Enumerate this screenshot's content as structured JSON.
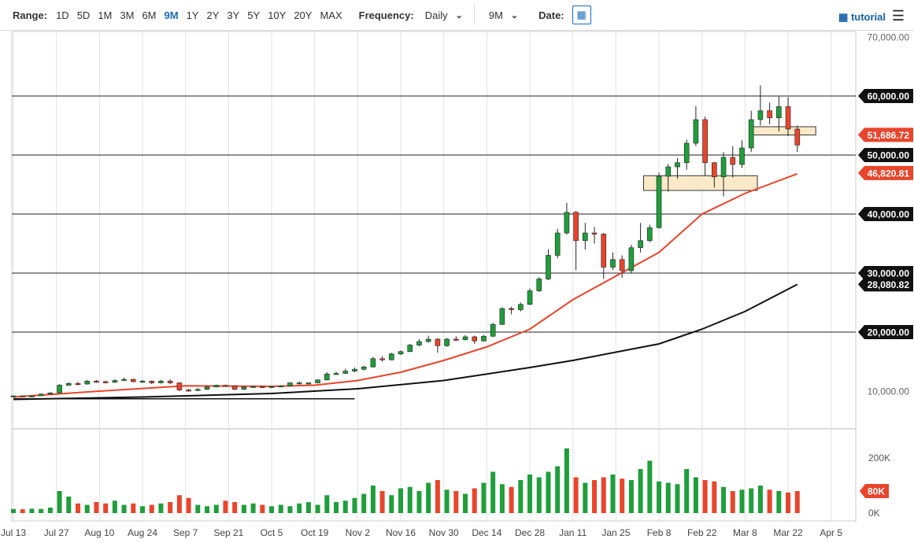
{
  "toolbar": {
    "range_label": "Range:",
    "ranges": [
      "1D",
      "5D",
      "1M",
      "3M",
      "6M",
      "9M",
      "1Y",
      "2Y",
      "3Y",
      "5Y",
      "10Y",
      "20Y",
      "MAX"
    ],
    "active_range": "9M",
    "frequency_label": "Frequency:",
    "frequency": "Daily",
    "period": "9M",
    "date_label": "Date:",
    "tutorial": "tutorial"
  },
  "chart_data": {
    "type": "candlestick",
    "colors": {
      "up": "#1f9e3c",
      "down": "#e8452c",
      "ma_fast": "#e8452c",
      "ma_slow": "#111111",
      "zone": "#fbe9c8"
    },
    "y_ticks": [
      10000,
      20000,
      30000,
      40000,
      50000,
      60000,
      70000
    ],
    "y_tick_labels": [
      "10,000.00",
      "20,000.00",
      "30,000.00",
      "40,000.00",
      "50,000.00",
      "60,000.00",
      "70,000.00"
    ],
    "ylim": [
      10000,
      70000
    ],
    "x_tick_labels": [
      "Jul 13",
      "Jul 27",
      "Aug 10",
      "Aug 24",
      "Sep 7",
      "Sep 21",
      "Oct 5",
      "Oct 19",
      "Nov 2",
      "Nov 16",
      "Nov 30",
      "Dec 14",
      "Dec 28",
      "Jan 11",
      "Jan 25",
      "Feb 8",
      "Feb 22",
      "Mar 8",
      "Mar 22",
      "Apr 5"
    ],
    "dates": [
      "Jul 13",
      "Jul 16",
      "Jul 19",
      "Jul 22",
      "Jul 25",
      "Jul 28",
      "Jul 31",
      "Aug 3",
      "Aug 6",
      "Aug 9",
      "Aug 12",
      "Aug 15",
      "Aug 18",
      "Aug 21",
      "Aug 24",
      "Aug 27",
      "Aug 30",
      "Sep 2",
      "Sep 5",
      "Sep 8",
      "Sep 11",
      "Sep 14",
      "Sep 17",
      "Sep 20",
      "Sep 23",
      "Sep 26",
      "Sep 29",
      "Oct 2",
      "Oct 5",
      "Oct 8",
      "Oct 11",
      "Oct 14",
      "Oct 17",
      "Oct 20",
      "Oct 23",
      "Oct 26",
      "Oct 29",
      "Nov 1",
      "Nov 4",
      "Nov 7",
      "Nov 10",
      "Nov 13",
      "Nov 16",
      "Nov 19",
      "Nov 22",
      "Nov 25",
      "Nov 28",
      "Dec 1",
      "Dec 4",
      "Dec 7",
      "Dec 10",
      "Dec 13",
      "Dec 16",
      "Dec 19",
      "Dec 22",
      "Dec 25",
      "Dec 28",
      "Dec 31",
      "Jan 3",
      "Jan 6",
      "Jan 9",
      "Jan 12",
      "Jan 15",
      "Jan 18",
      "Jan 21",
      "Jan 24",
      "Jan 27",
      "Jan 30",
      "Feb 2",
      "Feb 5",
      "Feb 8",
      "Feb 11",
      "Feb 14",
      "Feb 17",
      "Feb 20",
      "Feb 23",
      "Feb 26",
      "Mar 1",
      "Mar 4",
      "Mar 7",
      "Mar 10",
      "Mar 13",
      "Mar 16",
      "Mar 19",
      "Mar 22",
      "Mar 25"
    ],
    "open": [
      9100,
      9200,
      9100,
      9200,
      9500,
      9700,
      11000,
      11300,
      11200,
      11700,
      11600,
      11500,
      11800,
      12000,
      11600,
      11700,
      11400,
      11700,
      11400,
      10200,
      10100,
      10300,
      10700,
      11000,
      10900,
      10300,
      10700,
      10800,
      10600,
      10800,
      10900,
      11400,
      11400,
      11400,
      11900,
      12900,
      13000,
      13400,
      13700,
      14100,
      15500,
      15300,
      16300,
      16700,
      17800,
      18400,
      18800,
      17700,
      18800,
      18700,
      19200,
      18500,
      19300,
      21300,
      24000,
      23800,
      24700,
      27000,
      29000,
      33000,
      36800,
      40300,
      35500,
      36800,
      36600,
      31000,
      32300,
      30400,
      34300,
      35500,
      37700,
      46400,
      48000,
      48700,
      52000,
      56000,
      48700,
      46300,
      49600,
      48400,
      51200,
      56000,
      57500,
      56300,
      58200,
      54400
    ],
    "high": [
      9300,
      9250,
      9300,
      9600,
      9800,
      11200,
      11500,
      11600,
      11900,
      11900,
      11800,
      12000,
      12300,
      12100,
      11900,
      11800,
      11900,
      12000,
      11500,
      10400,
      10500,
      10800,
      11100,
      11100,
      11000,
      10800,
      10900,
      10900,
      10900,
      11000,
      11500,
      11600,
      11500,
      12000,
      13200,
      13300,
      13800,
      14000,
      14300,
      15800,
      15900,
      16500,
      16900,
      18000,
      18800,
      19400,
      19000,
      19000,
      19300,
      19500,
      19400,
      19500,
      21600,
      24200,
      24300,
      25000,
      27400,
      29300,
      34000,
      37500,
      41900,
      40500,
      38500,
      37800,
      36800,
      33500,
      33000,
      34800,
      38500,
      38200,
      47000,
      48500,
      49500,
      52600,
      58300,
      56500,
      48800,
      50500,
      51500,
      52500,
      57500,
      61800,
      58900,
      59900,
      59800,
      55000
    ],
    "low": [
      9000,
      9000,
      9050,
      9150,
      9400,
      9650,
      10900,
      11000,
      11100,
      11400,
      11300,
      11400,
      11700,
      11500,
      11400,
      11200,
      11300,
      11200,
      10000,
      9900,
      10000,
      10200,
      10600,
      10700,
      10200,
      10200,
      10600,
      10500,
      10500,
      10700,
      10800,
      11200,
      11300,
      11300,
      11800,
      12800,
      12900,
      13200,
      13500,
      14000,
      15000,
      15200,
      16100,
      16600,
      17600,
      18200,
      16500,
      17500,
      18500,
      18600,
      18000,
      18400,
      19200,
      21200,
      23000,
      23500,
      24600,
      26800,
      28800,
      32500,
      36500,
      30500,
      34000,
      35000,
      29000,
      30500,
      29200,
      30000,
      33500,
      35200,
      37500,
      43800,
      46000,
      47500,
      51500,
      46500,
      44500,
      43000,
      46200,
      47800,
      50500,
      55000,
      55200,
      54000,
      53200,
      50500
    ],
    "close": [
      9200,
      9100,
      9200,
      9500,
      9700,
      11000,
      11300,
      11200,
      11700,
      11600,
      11500,
      11800,
      12000,
      11600,
      11700,
      11400,
      11700,
      11400,
      10200,
      10100,
      10300,
      10700,
      11000,
      10900,
      10300,
      10700,
      10800,
      10600,
      10800,
      10900,
      11400,
      11400,
      11400,
      11900,
      12900,
      13000,
      13400,
      13700,
      14100,
      15500,
      15300,
      16300,
      16700,
      17800,
      18400,
      18800,
      17700,
      18800,
      18700,
      19200,
      18500,
      19300,
      21300,
      24000,
      23800,
      24700,
      27000,
      29000,
      33000,
      36800,
      40300,
      35500,
      36800,
      36600,
      31000,
      32300,
      30400,
      34300,
      35500,
      37700,
      46400,
      48000,
      48700,
      52000,
      56000,
      48700,
      46300,
      49600,
      48400,
      51200,
      56000,
      57500,
      56300,
      58200,
      54400,
      51686.72
    ],
    "volume_k": [
      15,
      14,
      16,
      15,
      20,
      80,
      60,
      35,
      30,
      40,
      35,
      45,
      30,
      35,
      25,
      30,
      35,
      40,
      65,
      55,
      30,
      25,
      30,
      45,
      40,
      30,
      35,
      30,
      25,
      30,
      25,
      35,
      40,
      30,
      65,
      40,
      45,
      55,
      70,
      100,
      80,
      65,
      90,
      95,
      80,
      110,
      120,
      85,
      80,
      70,
      90,
      110,
      150,
      105,
      95,
      120,
      140,
      130,
      150,
      170,
      235,
      130,
      110,
      120,
      130,
      140,
      125,
      120,
      160,
      190,
      115,
      110,
      105,
      160,
      130,
      120,
      115,
      95,
      80,
      85,
      90,
      100,
      85,
      80,
      75,
      80
    ],
    "volume_ticks": [
      "0K",
      "200K"
    ],
    "volume_last_label": "80K",
    "ma_fast": {
      "dates": [
        "Jul 13",
        "Aug 10",
        "Sep 7",
        "Oct 5",
        "Oct 19",
        "Nov 2",
        "Nov 16",
        "Nov 30",
        "Dec 14",
        "Dec 28",
        "Jan 11",
        "Jan 25",
        "Feb 8",
        "Feb 22",
        "Mar 8",
        "Mar 25"
      ],
      "values": [
        9000,
        10000,
        10900,
        10800,
        11000,
        11800,
        13200,
        15200,
        17500,
        20500,
        25500,
        29500,
        33500,
        40000,
        43500,
        46820.81
      ],
      "last_label": "46,820.81"
    },
    "ma_slow": {
      "dates": [
        "Jul 13",
        "Aug 24",
        "Oct 5",
        "Nov 2",
        "Nov 30",
        "Dec 28",
        "Jan 11",
        "Feb 8",
        "Feb 22",
        "Mar 8",
        "Mar 25"
      ],
      "values": [
        8600,
        9000,
        9600,
        10400,
        11800,
        14000,
        15200,
        18000,
        20500,
        23500,
        28080.82
      ],
      "last_label": "28,080.82"
    },
    "last_price_label": "51,686.72",
    "support_line": {
      "from": "Jul 13",
      "to": "Nov 1",
      "value": 8700
    },
    "zones": [
      {
        "from": "Feb 3",
        "to": "Mar 12",
        "low": 44000,
        "high": 46500
      },
      {
        "from": "Mar 10",
        "to": "Mar 31",
        "low": 53400,
        "high": 54800
      }
    ]
  }
}
